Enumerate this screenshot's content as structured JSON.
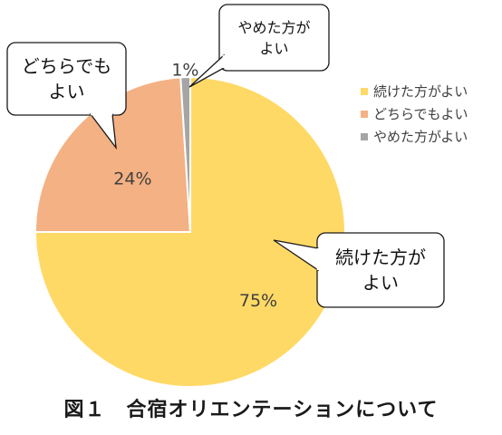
{
  "chart_data": {
    "type": "pie",
    "categories": [
      "続けた方がよい",
      "どちらでもよい",
      "やめた方がよい"
    ],
    "values": [
      75,
      24,
      1
    ],
    "value_labels": [
      "75%",
      "24%",
      "1%"
    ],
    "colors": [
      "#FFD966",
      "#F4B183",
      "#A5A5A5"
    ],
    "callouts": [
      {
        "lines": [
          "続けた方が",
          "よい"
        ]
      },
      {
        "lines": [
          "どちらでも",
          "よい"
        ]
      },
      {
        "lines": [
          "やめた方が",
          "よい"
        ]
      }
    ],
    "legend_position": "right"
  },
  "legend": {
    "items": [
      {
        "label": "続けた方がよい",
        "color": "#FFD966"
      },
      {
        "label": "どちらでもよい",
        "color": "#F4B183"
      },
      {
        "label": "やめた方がよい",
        "color": "#A5A5A5"
      }
    ]
  },
  "caption": "図１　合宿オリエンテーションについて"
}
